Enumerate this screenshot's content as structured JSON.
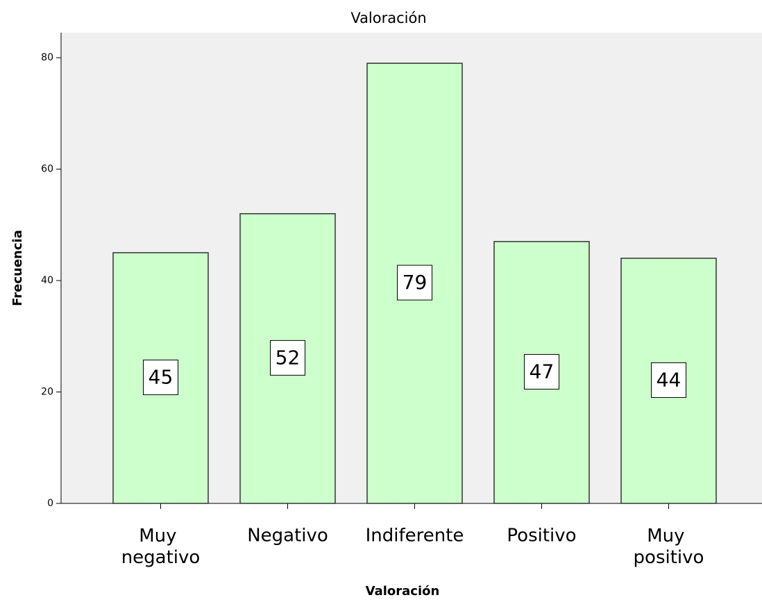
{
  "chart_data": {
    "type": "bar",
    "title": "Valoración",
    "x_label": "Valoración",
    "y_label": "Frecuencia",
    "categories": [
      "Muy negativo",
      "Negativo",
      "Indiferente",
      "Positivo",
      "Muy positivo"
    ],
    "values": [
      45,
      52,
      79,
      47,
      44
    ],
    "color": "#ccffcc",
    "ylim": [
      0,
      84.5
    ],
    "yticks": [
      0,
      20,
      40,
      60,
      80
    ],
    "grid": false
  }
}
